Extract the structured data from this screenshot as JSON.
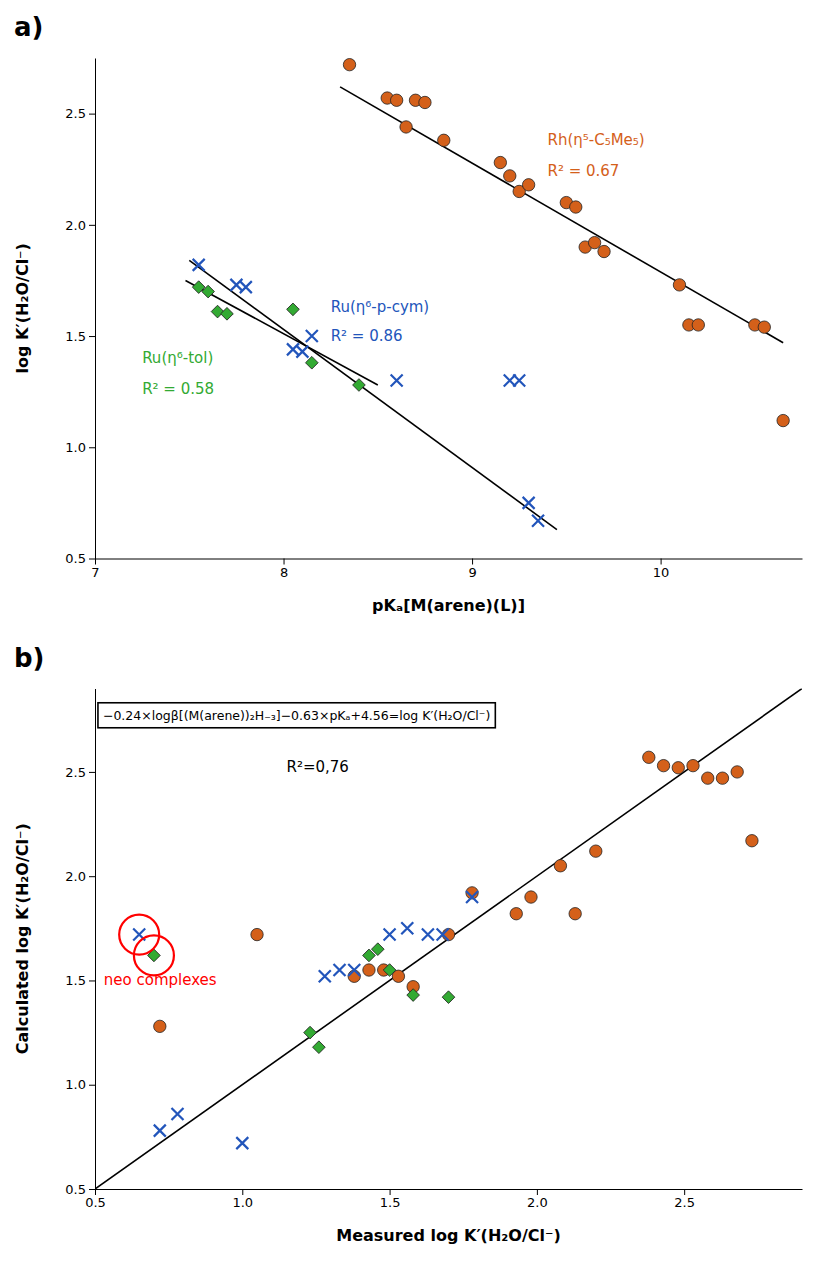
{
  "chart_data": [
    {
      "type": "scatter",
      "title": "a)",
      "x_label": "pKₐ[M(arene)(L)]",
      "y_label": "log K′(H₂O/Cl⁻)",
      "xlim": [
        7.0,
        10.75
      ],
      "ylim": [
        0.5,
        2.75
      ],
      "xticks": [
        7,
        8,
        9,
        10
      ],
      "yticks": [
        0.5,
        {
          "value": 1.0,
          "label": "1.0"
        },
        1.5,
        {
          "value": 2.0,
          "label": "2.0"
        },
        2.5
      ],
      "grid": false,
      "series": [
        {
          "type": "scatter",
          "color": "#D4601A",
          "marker": "circle",
          "x": [
            8.35,
            8.55,
            8.6,
            8.65,
            8.7,
            8.75,
            8.85,
            9.15,
            9.2,
            9.25,
            9.3,
            9.5,
            9.55,
            9.6,
            9.65,
            9.7,
            10.1,
            10.15,
            10.2,
            10.5,
            10.55,
            10.65
          ],
          "values": [
            2.72,
            2.57,
            2.56,
            2.44,
            2.56,
            2.55,
            2.38,
            2.28,
            2.22,
            2.15,
            2.18,
            2.1,
            2.08,
            1.9,
            1.92,
            1.88,
            1.73,
            1.55,
            1.55,
            1.55,
            1.54,
            1.12
          ]
        },
        {
          "type": "scatter",
          "color": "#2255BB",
          "marker": "x",
          "x": [
            7.55,
            7.75,
            7.8,
            8.05,
            8.1,
            8.15,
            8.6,
            9.2,
            9.25,
            9.3,
            9.35
          ],
          "values": [
            1.82,
            1.73,
            1.72,
            1.44,
            1.43,
            1.5,
            1.3,
            1.3,
            1.3,
            0.75,
            0.67
          ]
        },
        {
          "type": "scatter",
          "color": "#33AA33",
          "marker": "diamond",
          "x": [
            7.55,
            7.6,
            7.65,
            7.7,
            8.05,
            8.15,
            8.4
          ],
          "values": [
            1.72,
            1.7,
            1.61,
            1.6,
            1.62,
            1.38,
            1.28
          ]
        },
        {
          "type": "line",
          "color": "black",
          "line_style": "solid",
          "x": [
            8.3,
            10.65
          ],
          "values": [
            2.62,
            1.47
          ]
        },
        {
          "type": "line",
          "color": "black",
          "line_style": "solid",
          "x": [
            7.5,
            9.45
          ],
          "values": [
            1.84,
            0.63
          ]
        },
        {
          "type": "line",
          "color": "black",
          "line_style": "solid",
          "x": [
            7.48,
            8.5
          ],
          "values": [
            1.75,
            1.28
          ]
        }
      ],
      "annotations": [
        {
          "text": "Rh(η⁵-C₅Me₅)",
          "x": 9.4,
          "y": 2.38,
          "color": "#D4601A"
        },
        {
          "text": "R² = 0.67",
          "x": 9.4,
          "y": 2.24,
          "color": "#D4601A"
        },
        {
          "text": "Ru(η⁶-p-cym)",
          "x": 8.25,
          "y": 1.63,
          "color": "#2255BB"
        },
        {
          "text": "R² = 0.86",
          "x": 8.25,
          "y": 1.5,
          "color": "#2255BB"
        },
        {
          "text": "Ru(η⁶-tol)",
          "x": 7.25,
          "y": 1.4,
          "color": "#33AA33"
        },
        {
          "text": "R² = 0.58",
          "x": 7.25,
          "y": 1.26,
          "color": "#33AA33"
        }
      ]
    },
    {
      "type": "scatter",
      "title": "b)",
      "x_label": "Measured log K′(H₂O/Cl⁻)",
      "y_label": "Calculated log K′(H₂O/Cl⁻)",
      "xlim": [
        0.5,
        2.9
      ],
      "ylim": [
        0.5,
        2.9
      ],
      "xticks": [
        0.5,
        {
          "value": 1.0,
          "label": "1.0"
        },
        1.5,
        {
          "value": 2.0,
          "label": "2.0"
        },
        2.5
      ],
      "yticks": [
        0.5,
        {
          "value": 1.0,
          "label": "1.0"
        },
        1.5,
        {
          "value": 2.0,
          "label": "2.0"
        },
        2.5
      ],
      "grid": false,
      "series": [
        {
          "type": "scatter",
          "color": "#D4601A",
          "marker": "circle",
          "x": [
            0.72,
            1.05,
            1.38,
            1.43,
            1.48,
            1.53,
            1.58,
            1.7,
            1.78,
            1.93,
            1.98,
            2.08,
            2.13,
            2.2,
            2.38,
            2.43,
            2.48,
            2.53,
            2.58,
            2.63,
            2.68,
            2.73
          ],
          "values": [
            1.28,
            1.72,
            1.52,
            1.55,
            1.55,
            1.52,
            1.47,
            1.72,
            1.92,
            1.82,
            1.9,
            2.05,
            1.82,
            2.12,
            2.57,
            2.53,
            2.52,
            2.53,
            2.47,
            2.47,
            2.5,
            2.17
          ]
        },
        {
          "type": "scatter",
          "color": "#2255BB",
          "marker": "x",
          "x": [
            0.65,
            0.72,
            0.78,
            1.0,
            1.28,
            1.33,
            1.38,
            1.5,
            1.56,
            1.63,
            1.68,
            1.78
          ],
          "values": [
            1.72,
            0.78,
            0.86,
            0.72,
            1.52,
            1.55,
            1.55,
            1.72,
            1.75,
            1.72,
            1.72,
            1.9
          ]
        },
        {
          "type": "scatter",
          "color": "#33AA33",
          "marker": "diamond",
          "x": [
            0.7,
            1.23,
            1.26,
            1.43,
            1.46,
            1.5,
            1.58,
            1.7
          ],
          "values": [
            1.62,
            1.25,
            1.18,
            1.62,
            1.65,
            1.55,
            1.43,
            1.42
          ]
        },
        {
          "type": "line",
          "color": "black",
          "line_style": "solid",
          "x": [
            0.5,
            2.9
          ],
          "values": [
            0.5,
            2.9
          ]
        }
      ],
      "annotations": [
        {
          "text": "−0.24×logβ[(M(arene))₂H₋₃]−0.63×pKₐ+4.56=log K′(H₂O/Cl⁻)",
          "x": 0.51,
          "y": 2.82,
          "box": true
        },
        {
          "text": "R²=0,76",
          "x": 1.15,
          "y": 2.52,
          "color": "black"
        },
        {
          "shape": "circle",
          "x": 0.65,
          "y": 1.72,
          "color": "red"
        },
        {
          "shape": "circle",
          "x": 0.7,
          "y": 1.62,
          "color": "red"
        },
        {
          "text": "neo complexes",
          "x": 0.53,
          "y": 1.5,
          "color": "red"
        }
      ]
    }
  ]
}
